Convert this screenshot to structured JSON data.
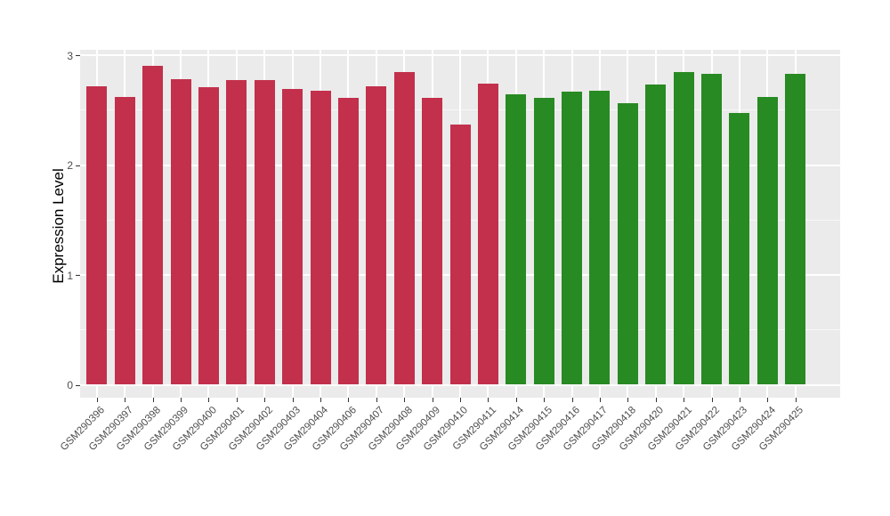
{
  "chart_data": {
    "type": "bar",
    "title": "",
    "xlabel": "",
    "ylabel": "Expression Level",
    "ylim": [
      0,
      3
    ],
    "yticks": [
      "0",
      "1",
      "2",
      "3"
    ],
    "ytick_values": [
      0,
      1,
      2,
      3
    ],
    "yminor_values": [
      0.5,
      1.5,
      2.5
    ],
    "grid": true,
    "legend_position": "none",
    "categories": [
      "GSM290396",
      "GSM290397",
      "GSM290398",
      "GSM290399",
      "GSM290400",
      "GSM290401",
      "GSM290402",
      "GSM290403",
      "GSM290404",
      "GSM290406",
      "GSM290407",
      "GSM290408",
      "GSM290409",
      "GSM290410",
      "GSM290411",
      "GSM290414",
      "GSM290415",
      "GSM290416",
      "GSM290417",
      "GSM290418",
      "GSM290420",
      "GSM290421",
      "GSM290422",
      "GSM290423",
      "GSM290424",
      "GSM290425"
    ],
    "values": [
      2.72,
      2.62,
      2.9,
      2.78,
      2.71,
      2.77,
      2.77,
      2.69,
      2.68,
      2.61,
      2.72,
      2.85,
      2.61,
      2.37,
      2.74,
      2.64,
      2.61,
      2.67,
      2.68,
      2.56,
      2.73,
      2.85,
      2.83,
      2.47,
      2.62,
      2.83
    ],
    "groups": [
      {
        "name": "group-red",
        "color": "#C2304C",
        "start": 0,
        "count": 15
      },
      {
        "name": "group-green",
        "color": "#288A22",
        "start": 15,
        "count": 11
      }
    ],
    "colors": {
      "panel_background": "#EBEBEB",
      "gridline": "#FFFFFF",
      "axis_text": "#4D4D4D",
      "axis_title": "#000000",
      "tick_mark": "#333333"
    }
  }
}
